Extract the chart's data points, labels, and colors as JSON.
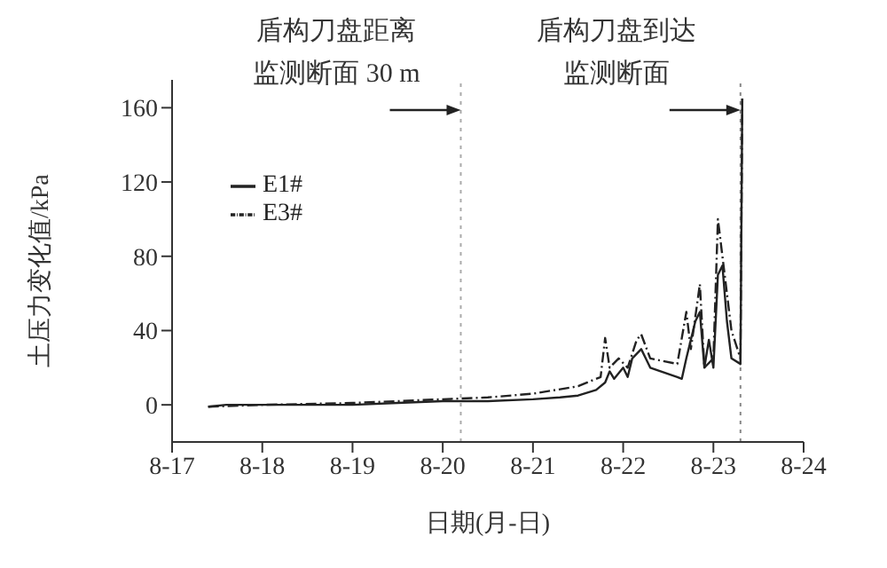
{
  "chart_data": {
    "type": "line",
    "xlabel": "日期(月-日)",
    "ylabel": "土压力变化值/kPa",
    "xlim": [
      "--08-17",
      "--08-24"
    ],
    "xticks": [
      {
        "value": "--08-17",
        "label": "8-17"
      },
      {
        "value": "--08-18",
        "label": "8-18"
      },
      {
        "value": "--08-19",
        "label": "8-19"
      },
      {
        "value": "--08-20",
        "label": "8-20"
      },
      {
        "value": "--08-21",
        "label": "8-21"
      },
      {
        "value": "--08-22",
        "label": "8-22"
      },
      {
        "value": "--08-23",
        "label": "8-23"
      },
      {
        "value": "--08-24",
        "label": "8-24"
      }
    ],
    "ylim": [
      -20,
      175
    ],
    "yticks": [
      0,
      40,
      80,
      120,
      160
    ],
    "legend": "top left",
    "marker": "none",
    "series": [
      {
        "name": "E1#",
        "color": "#222222",
        "line_style": "solid",
        "x": [
          "--08-17T09:36",
          "--08-17T14:24",
          "--08-18T00:00",
          "--08-19T00:00",
          "--08-19T12:00",
          "--08-20T00:00",
          "--08-20T12:00",
          "--08-21T00:00",
          "--08-21T07:12",
          "--08-21T12:00",
          "--08-21T16:48",
          "--08-21T19:12",
          "--08-21T20:24",
          "--08-21T21:36",
          "--08-22T00:00",
          "--08-22T01:12",
          "--08-22T02:24",
          "--08-22T04:48",
          "--08-22T06:00",
          "--08-22T07:12",
          "--08-22T14:24",
          "--08-22T15:36",
          "--08-22T16:48",
          "--08-22T19:12",
          "--08-22T20:24",
          "--08-22T21:36",
          "--08-22T22:48",
          "--08-23T00:00",
          "--08-23T01:12",
          "--08-23T02:24",
          "--08-23T03:36",
          "--08-23T04:48",
          "--08-23T07:12",
          "--08-23T07:41"
        ],
        "values": [
          -1,
          0,
          0,
          0,
          1,
          2,
          2,
          3,
          4,
          5,
          8,
          12,
          18,
          14,
          20,
          15,
          25,
          30,
          25,
          20,
          15,
          14,
          25,
          45,
          50,
          20,
          35,
          20,
          70,
          75,
          45,
          25,
          22,
          165
        ]
      },
      {
        "name": "E3#",
        "color": "#222222",
        "line_style": "dashdot",
        "x": [
          "--08-17T09:36",
          "--08-18T00:00",
          "--08-19T00:00",
          "--08-20T00:00",
          "--08-20T12:00",
          "--08-21T00:00",
          "--08-21T12:00",
          "--08-21T18:00",
          "--08-21T19:12",
          "--08-21T20:24",
          "--08-21T22:48",
          "--08-22T01:12",
          "--08-22T03:36",
          "--08-22T04:48",
          "--08-22T07:12",
          "--08-22T14:24",
          "--08-22T16:48",
          "--08-22T18:00",
          "--08-22T20:24",
          "--08-22T21:36",
          "--08-23T00:00",
          "--08-23T01:12",
          "--08-23T02:24",
          "--08-23T04:48",
          "--08-23T07:12",
          "--08-23T07:41"
        ],
        "values": [
          -1,
          0,
          1,
          3,
          4,
          6,
          10,
          15,
          36,
          20,
          25,
          20,
          35,
          38,
          25,
          22,
          50,
          30,
          65,
          20,
          25,
          100,
          80,
          40,
          25,
          165
        ]
      }
    ],
    "ref_lines": [
      {
        "axis": "x",
        "value": "--08-20T04:48",
        "label": "盾构刀盘距离监测断面 30 m",
        "color": "#aaaaaa",
        "line_style": "dotted"
      },
      {
        "axis": "x",
        "value": "--08-23T07:12",
        "label": "盾构刀盘到达监测断面",
        "color": "#888888",
        "line_style": "dotted"
      }
    ]
  }
}
